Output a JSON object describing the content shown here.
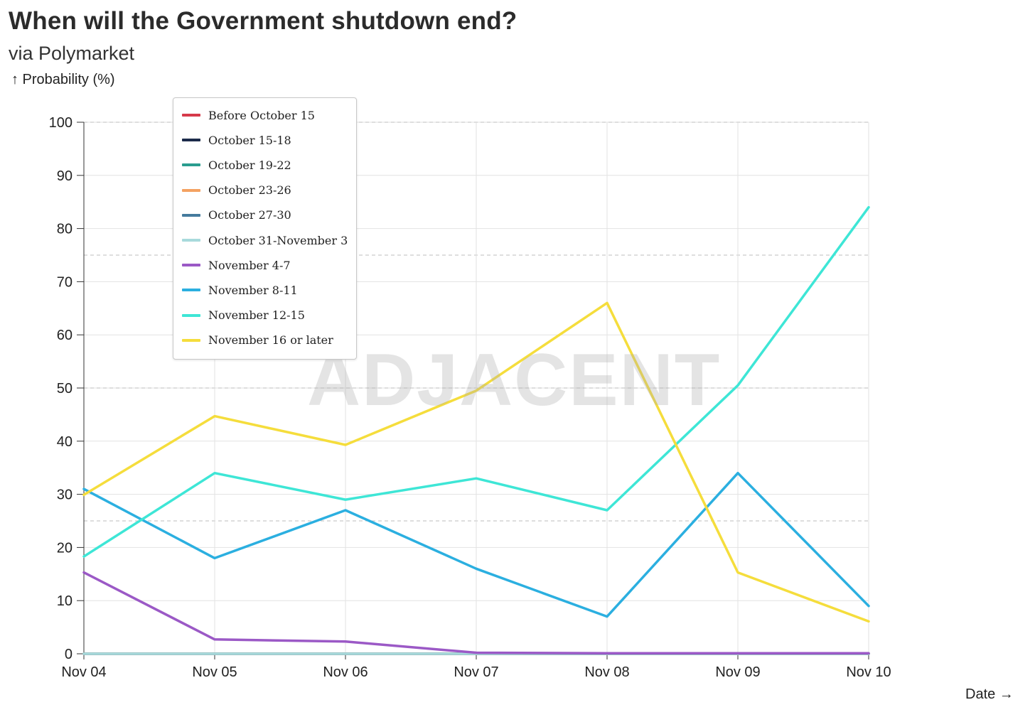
{
  "header": {
    "title": "When will the Government shutdown end?",
    "subtitle": "via Polymarket"
  },
  "watermark": "ADJACENT",
  "chart_data": {
    "type": "line",
    "title": "When will the Government shutdown end?",
    "subtitle": "via Polymarket",
    "ylabel": "↑ Probability (%)",
    "xlabel": "Date →",
    "x": [
      "Nov 04",
      "Nov 05",
      "Nov 06",
      "Nov 07",
      "Nov 08",
      "Nov 09",
      "Nov 10"
    ],
    "ylim": [
      0,
      100
    ],
    "yticks": [
      0,
      10,
      20,
      30,
      40,
      50,
      60,
      70,
      80,
      90,
      100
    ],
    "grid": true,
    "legend_position": "top-left",
    "series": [
      {
        "name": "Before October 15",
        "color": "#d63a4a",
        "values": [
          0,
          0,
          0,
          0,
          0,
          0,
          0
        ]
      },
      {
        "name": "October 15-18",
        "color": "#1c2b4a",
        "values": [
          0,
          0,
          0,
          0,
          0,
          0,
          0
        ]
      },
      {
        "name": "October 19-22",
        "color": "#2a9d8f",
        "values": [
          0,
          0,
          0,
          0,
          0,
          0,
          0
        ]
      },
      {
        "name": "October 23-26",
        "color": "#f4a261",
        "values": [
          0,
          0,
          0,
          0,
          0,
          0,
          0
        ]
      },
      {
        "name": "October 27-30",
        "color": "#457b9d",
        "values": [
          0,
          0,
          0,
          0,
          0,
          0,
          0
        ]
      },
      {
        "name": "October 31-November 3",
        "color": "#a8dadc",
        "values": [
          0,
          0,
          0,
          0,
          0,
          0,
          0
        ]
      },
      {
        "name": "November 4-7",
        "color": "#9b59c6",
        "values": [
          15.3,
          2.7,
          2.3,
          0.2,
          0.1,
          0.1,
          0.1
        ]
      },
      {
        "name": "November 8-11",
        "color": "#2bafe0",
        "values": [
          31,
          18,
          27,
          16,
          7,
          34,
          9
        ]
      },
      {
        "name": "November 12-15",
        "color": "#3ee6d6",
        "values": [
          18.3,
          34,
          29,
          33,
          27,
          50.5,
          84
        ]
      },
      {
        "name": "November 16 or later",
        "color": "#f5dd3c",
        "values": [
          29.9,
          44.7,
          39.3,
          49.5,
          66,
          15.3,
          6.1
        ]
      }
    ]
  }
}
